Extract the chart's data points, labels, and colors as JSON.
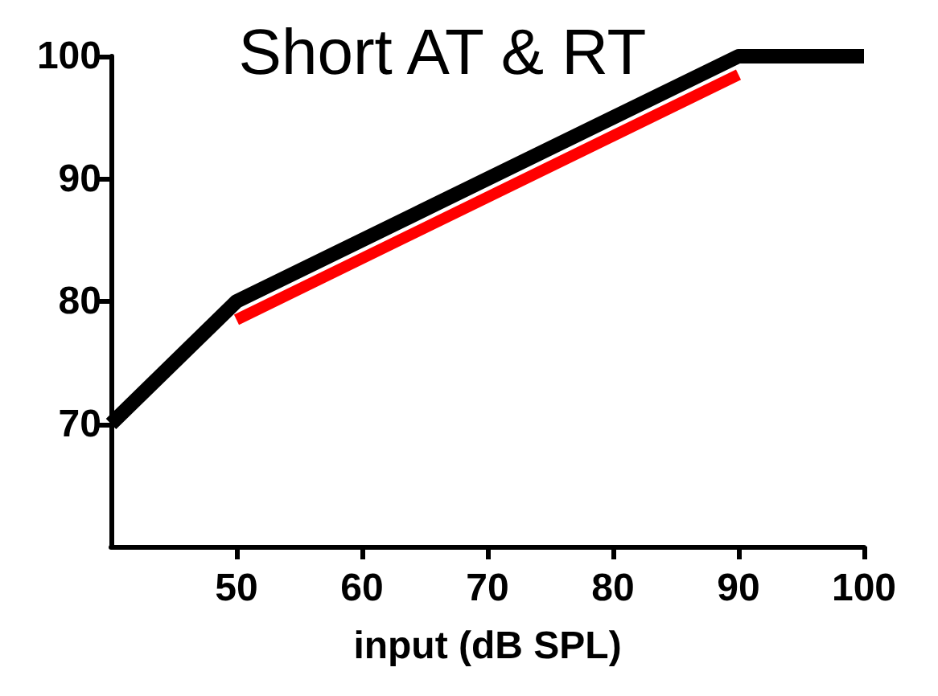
{
  "chart_data": {
    "type": "line",
    "title": "Short AT & RT",
    "xlabel": "input (dB SPL)",
    "xlim": [
      40,
      100
    ],
    "xticks": [
      50,
      60,
      70,
      80,
      90,
      100
    ],
    "ylim": [
      60,
      100
    ],
    "yticks": [
      70,
      80,
      90,
      100
    ],
    "grid": false,
    "marker": "none",
    "line_style": "solid",
    "series": [
      {
        "color": "#000000",
        "x": [
          40,
          50,
          90,
          100
        ],
        "values": [
          70,
          80,
          100,
          100
        ]
      },
      {
        "color": "#ff0000",
        "x": [
          50,
          90
        ],
        "values": [
          78.5,
          98.5
        ]
      }
    ]
  }
}
